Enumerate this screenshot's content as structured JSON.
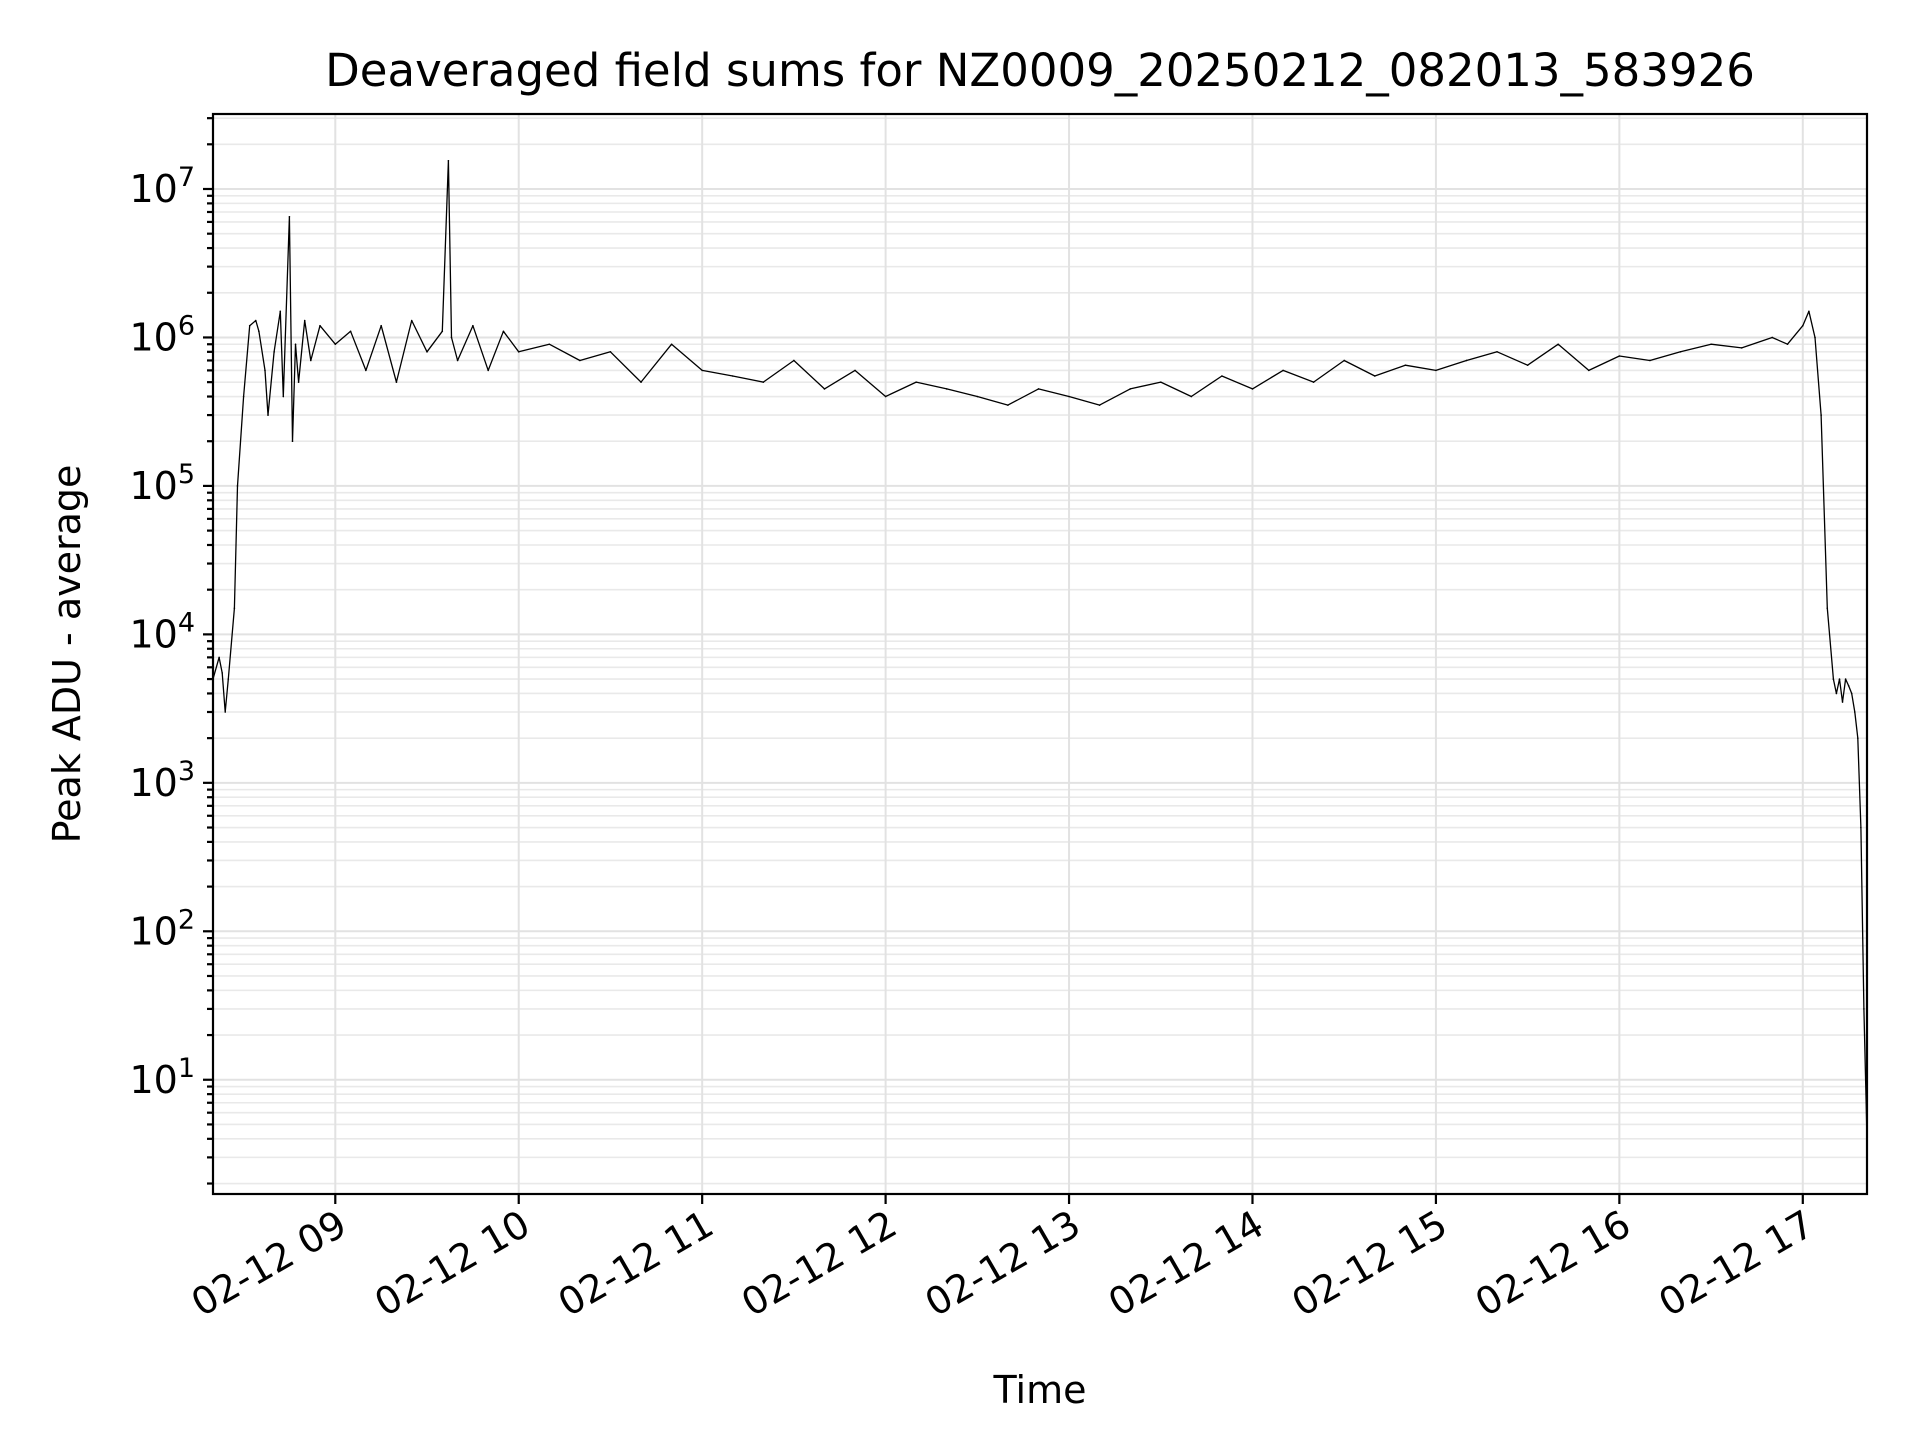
{
  "chart_data": {
    "type": "line",
    "title": "Deaveraged field sums for NZ0009_20250212_082013_583926",
    "xlabel": "Time",
    "ylabel": "Peak ADU - average",
    "yscale": "log",
    "ylim": [
      1.7,
      32000000
    ],
    "xlim": [
      "2025-02-12 08:20",
      "2025-02-12 17:21"
    ],
    "grid": true,
    "x_tick_labels": [
      "02-12 09",
      "02-12 10",
      "02-12 11",
      "02-12 12",
      "02-12 13",
      "02-12 14",
      "02-12 15",
      "02-12 16",
      "02-12 17"
    ],
    "y_ticks": [
      {
        "base": "10",
        "exp": "1"
      },
      {
        "base": "10",
        "exp": "2"
      },
      {
        "base": "10",
        "exp": "3"
      },
      {
        "base": "10",
        "exp": "4"
      },
      {
        "base": "10",
        "exp": "5"
      },
      {
        "base": "10",
        "exp": "6"
      },
      {
        "base": "10",
        "exp": "7"
      }
    ],
    "series": [
      {
        "color": "#000000",
        "x": [
          "08:20",
          "08:22",
          "08:23",
          "08:24",
          "08:25",
          "08:27",
          "08:28",
          "08:30",
          "08:32",
          "08:34",
          "08:35",
          "08:37",
          "08:38",
          "08:40",
          "08:42",
          "08:43",
          "08:45",
          "08:46",
          "08:47",
          "08:48",
          "08:50",
          "08:52",
          "08:55",
          "09:00",
          "09:05",
          "09:10",
          "09:15",
          "09:20",
          "09:25",
          "09:30",
          "09:35",
          "09:37",
          "09:38",
          "09:40",
          "09:45",
          "09:50",
          "09:55",
          "10:00",
          "10:10",
          "10:20",
          "10:30",
          "10:40",
          "10:50",
          "11:00",
          "11:10",
          "11:20",
          "11:30",
          "11:40",
          "11:50",
          "12:00",
          "12:10",
          "12:20",
          "12:30",
          "12:40",
          "12:50",
          "13:00",
          "13:10",
          "13:20",
          "13:30",
          "13:40",
          "13:50",
          "14:00",
          "14:10",
          "14:20",
          "14:30",
          "14:40",
          "14:50",
          "15:00",
          "15:10",
          "15:20",
          "15:30",
          "15:40",
          "15:50",
          "16:00",
          "16:10",
          "16:20",
          "16:30",
          "16:40",
          "16:50",
          "16:55",
          "17:00",
          "17:02",
          "17:04",
          "17:06",
          "17:08",
          "17:10",
          "17:11",
          "17:12",
          "17:13",
          "17:14",
          "17:15",
          "17:16",
          "17:17",
          "17:18",
          "17:19",
          "17:20",
          "17:21"
        ],
        "values": [
          5000,
          7000,
          5500,
          3000,
          5000,
          15000,
          100000,
          400000,
          1200000,
          1300000,
          1100000,
          600000,
          300000,
          800000,
          1500000,
          400000,
          6500000,
          200000,
          900000,
          500000,
          1300000,
          700000,
          1200000,
          900000,
          1100000,
          600000,
          1200000,
          500000,
          1300000,
          800000,
          1100000,
          15500000,
          1000000,
          700000,
          1200000,
          600000,
          1100000,
          800000,
          900000,
          700000,
          800000,
          500000,
          900000,
          600000,
          550000,
          500000,
          700000,
          450000,
          600000,
          400000,
          500000,
          450000,
          400000,
          350000,
          450000,
          400000,
          350000,
          450000,
          500000,
          400000,
          550000,
          450000,
          600000,
          500000,
          700000,
          550000,
          650000,
          600000,
          700000,
          800000,
          650000,
          900000,
          600000,
          750000,
          700000,
          800000,
          900000,
          850000,
          1000000,
          900000,
          1200000,
          1500000,
          1000000,
          300000,
          15000,
          5000,
          4000,
          5000,
          3500,
          5000,
          4500,
          4000,
          3000,
          2000,
          500,
          30,
          4
        ]
      }
    ]
  }
}
